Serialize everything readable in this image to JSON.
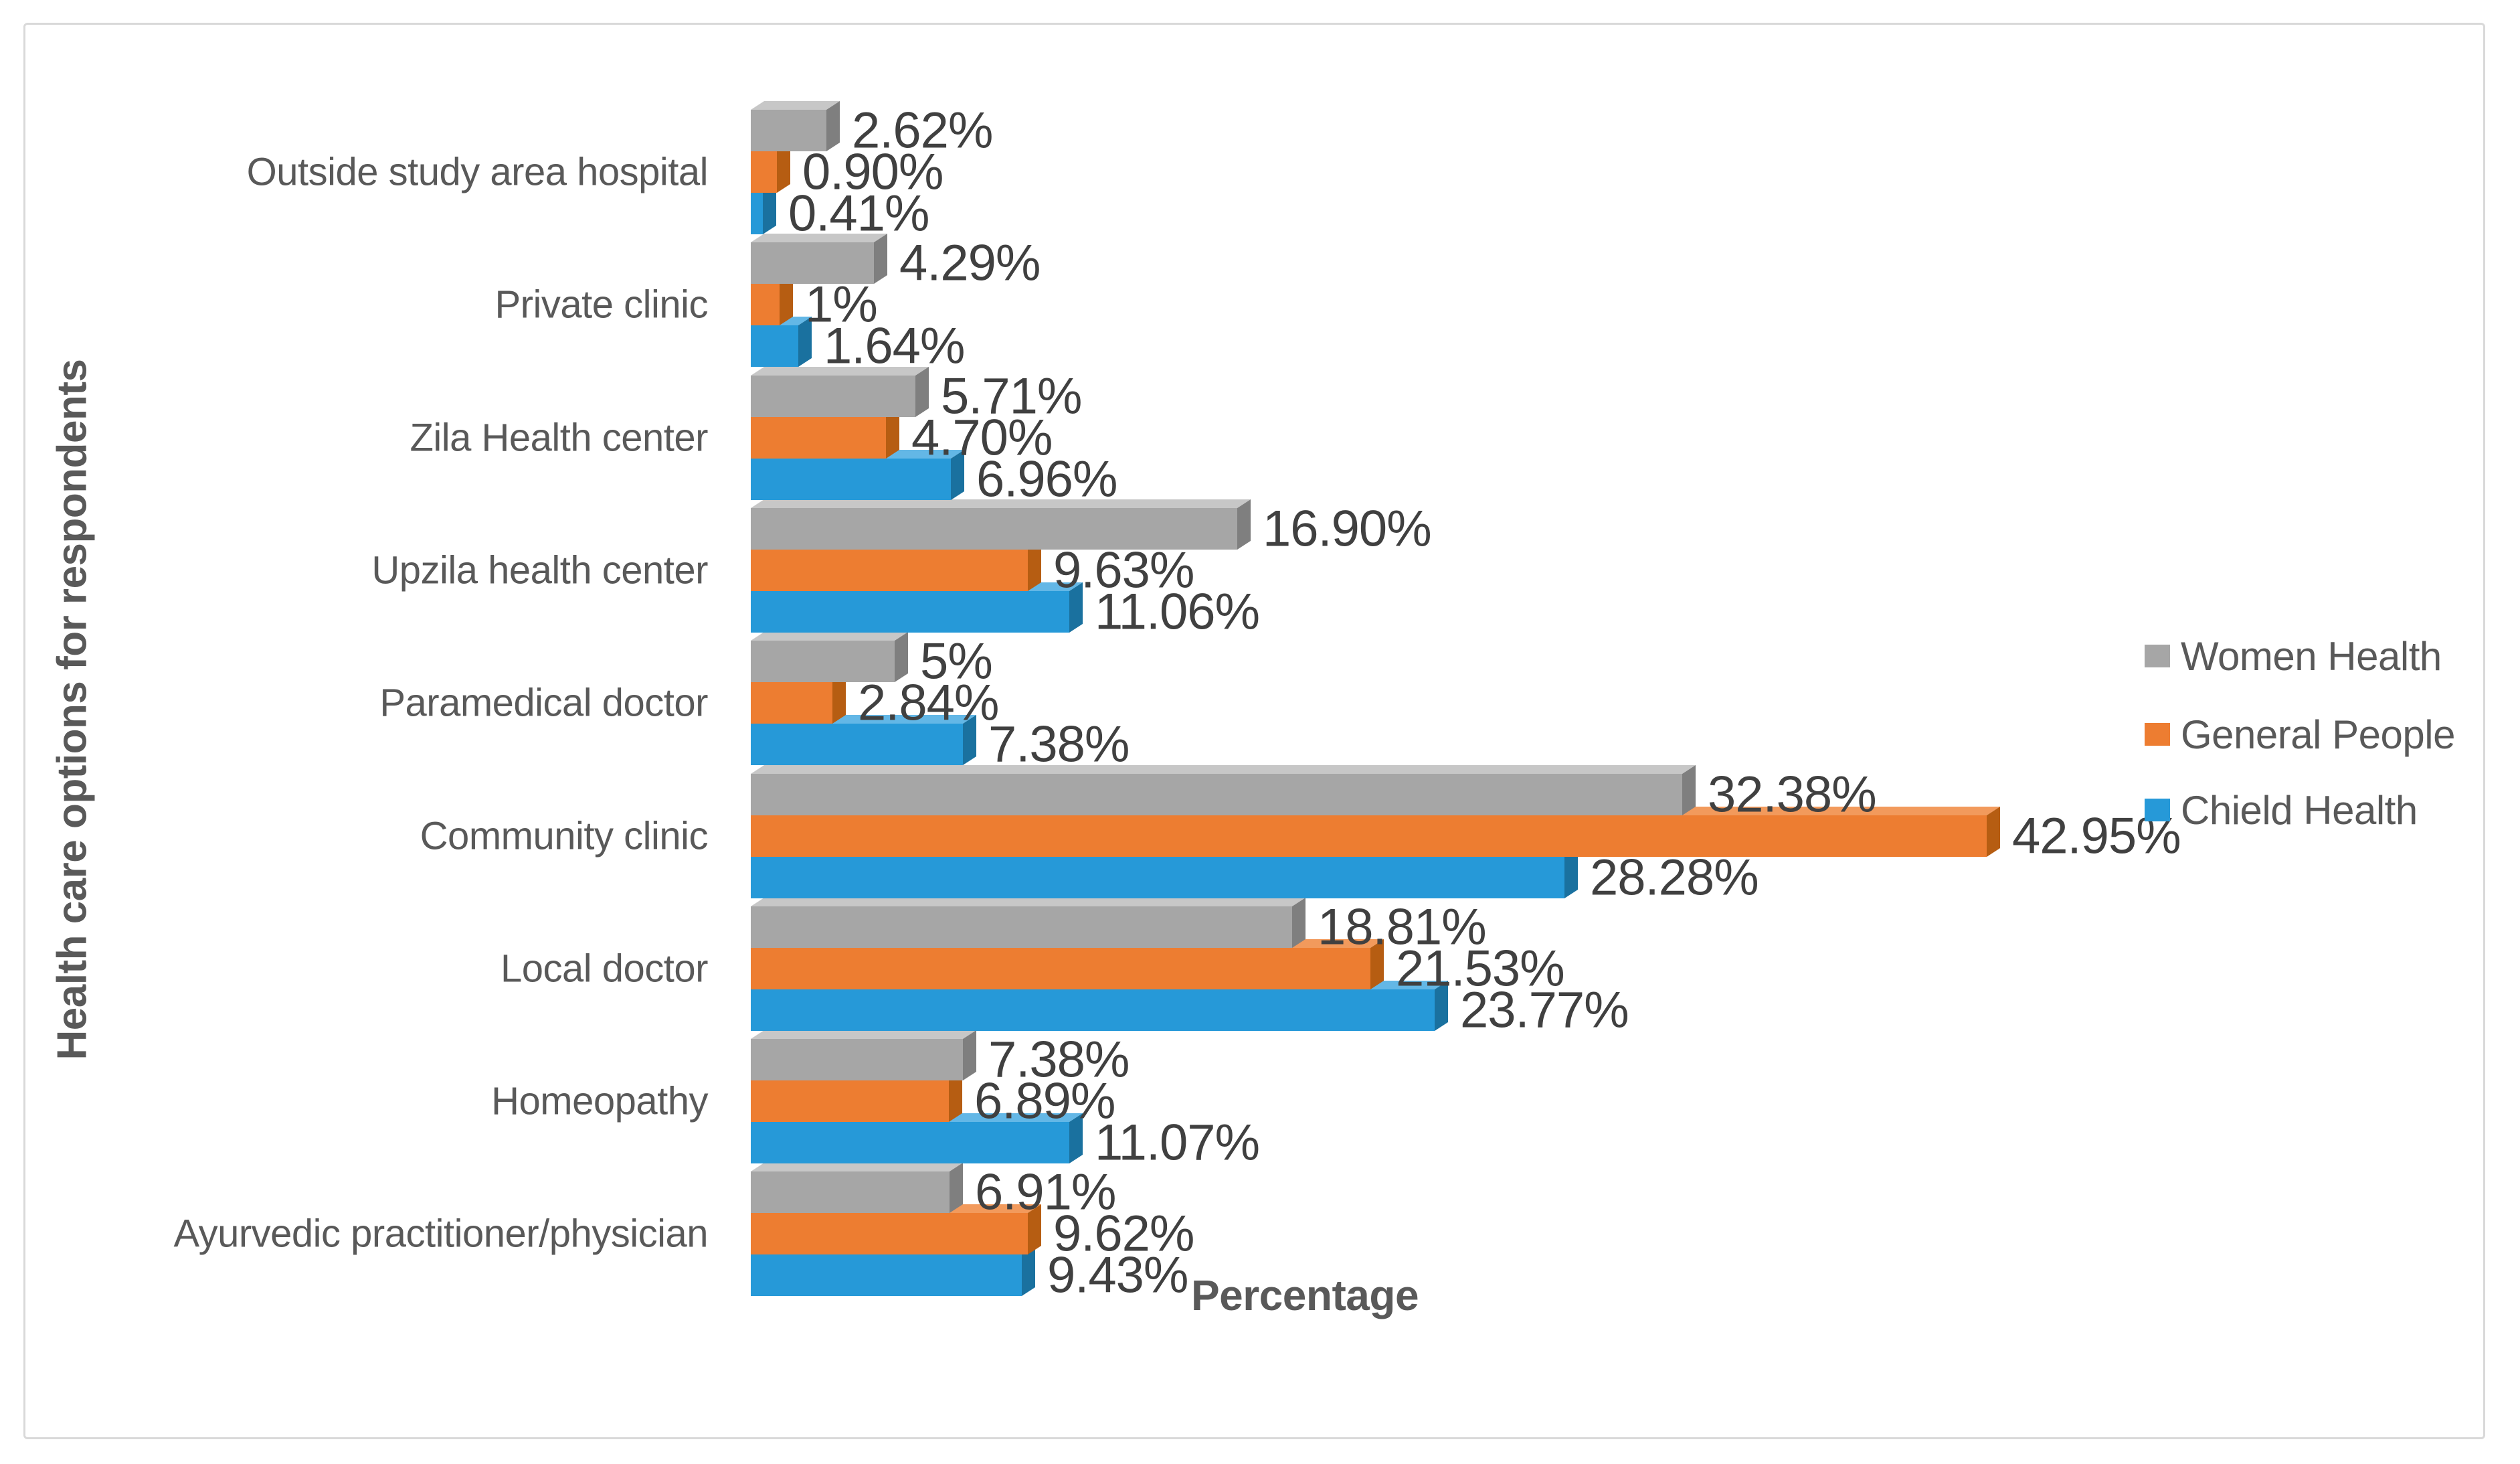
{
  "axes": {
    "x_title": "Percentage",
    "y_title": "Health care options for respondents"
  },
  "legend": {
    "position": "right"
  },
  "chart_data": {
    "type": "bar",
    "orientation": "horizontal",
    "title": "",
    "xlabel": "Percentage",
    "ylabel": "Health care options for respondents",
    "xlim": [
      0,
      45
    ],
    "grid": false,
    "legend_position": "center-right",
    "categories": [
      "Outside study area hospital",
      "Private clinic",
      "Zila Health center",
      "Upzila health center",
      "Paramedical doctor",
      "Community clinic",
      "Local doctor",
      "Homeopathy",
      "Ayurvedic practitioner/physician"
    ],
    "series": [
      {
        "name": "Women Health",
        "key": "women-health",
        "color": "#a6a6a6",
        "color_top": "#c7c7c7",
        "color_side": "#7f7f7f",
        "values": [
          2.62,
          4.29,
          5.71,
          16.9,
          5,
          32.38,
          18.81,
          7.38,
          6.91
        ],
        "labels": [
          "2.62%",
          "4.29%",
          "5.71%",
          "16.90%",
          "5%",
          "32.38%",
          "18.81%",
          "7.38%",
          "6.91%"
        ]
      },
      {
        "name": "General People",
        "key": "general-people",
        "color": "#ed7d31",
        "color_top": "#f29a5c",
        "color_side": "#b65d12",
        "values": [
          0.9,
          1,
          4.7,
          9.63,
          2.84,
          42.95,
          21.53,
          6.89,
          9.62
        ],
        "labels": [
          "0.90%",
          "1%",
          "4.70%",
          "9.63%",
          "2.84%",
          "42.95%",
          "21.53%",
          "6.89%",
          "9.62%"
        ]
      },
      {
        "name": "Chield Health",
        "key": "chield-health",
        "color": "#2699d8",
        "color_top": "#63b7e6",
        "color_side": "#1a719f",
        "values": [
          0.41,
          1.64,
          6.96,
          11.06,
          7.38,
          28.28,
          23.77,
          11.07,
          9.43
        ],
        "labels": [
          "0.41%",
          "1.64%",
          "6.96%",
          "11.06%",
          "7.38%",
          "28.28%",
          "23.77%",
          "11.07%",
          "9.43%"
        ]
      }
    ]
  }
}
